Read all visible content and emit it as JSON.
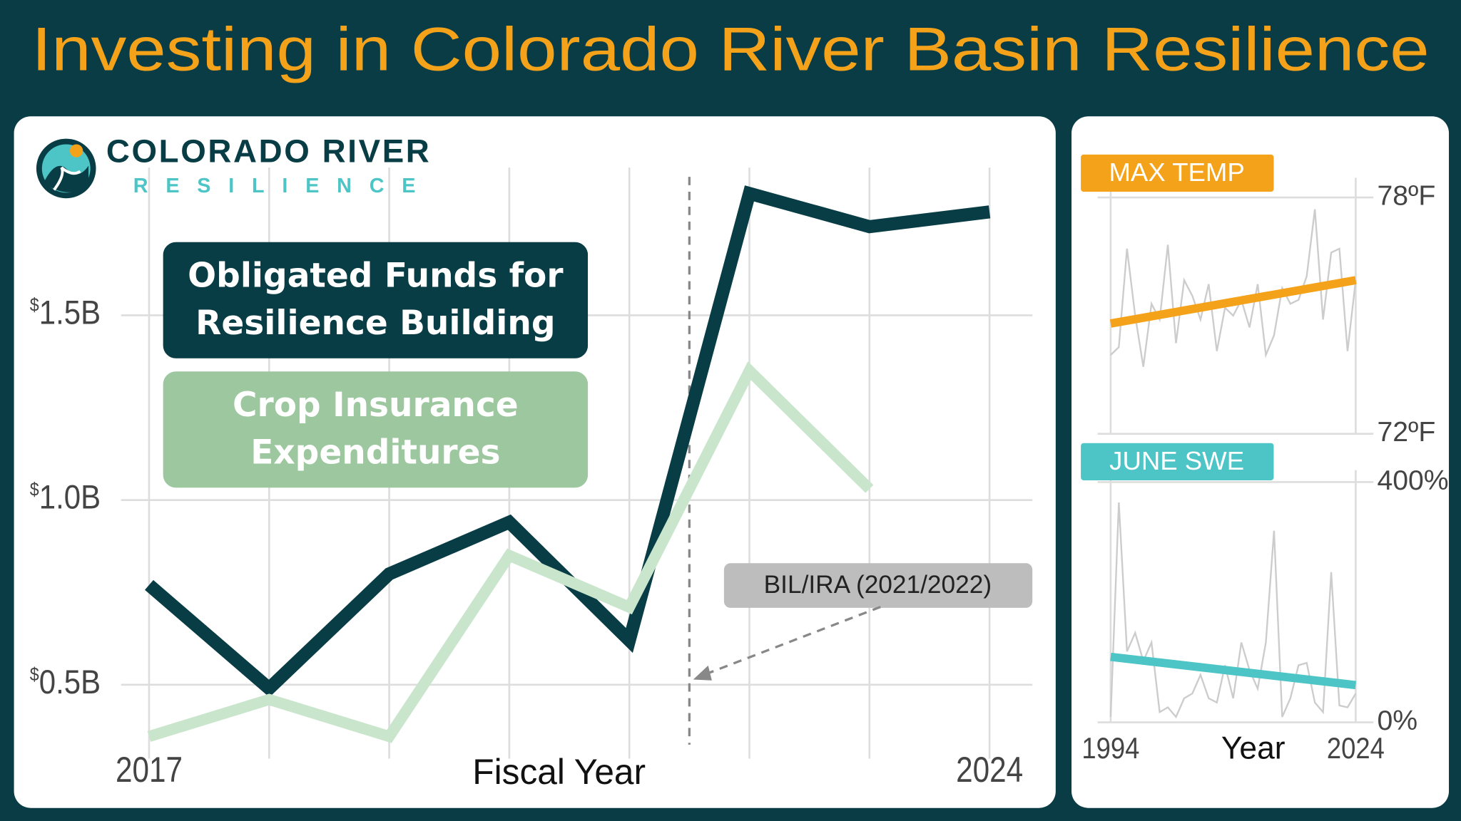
{
  "title": "Investing in Colorado River Basin Resilience",
  "logo": {
    "name": "COLORADO RIVER",
    "tagline": "RESILIENCE"
  },
  "chart_data": [
    {
      "type": "line",
      "x_label": "Fiscal Year",
      "x": [
        2017,
        2018,
        2019,
        2020,
        2021,
        2022,
        2023,
        2024
      ],
      "xlim": [
        2017,
        2024
      ],
      "xticks": [
        2017,
        2024
      ],
      "ylim": [
        0.3,
        1.9
      ],
      "yticks": [
        {
          "value": 0.5,
          "label": "$0.5B"
        },
        {
          "value": 1.0,
          "label": "$1.0B"
        },
        {
          "value": 1.5,
          "label": "$1.5B"
        }
      ],
      "grid": true,
      "series": [
        {
          "name": "Obligated Funds for Resilience Building",
          "color": "#093d45",
          "legend_color": "#093d45",
          "values": [
            0.77,
            0.49,
            0.8,
            0.94,
            0.62,
            1.83,
            1.74,
            1.78
          ]
        },
        {
          "name": "Crop Insurance Expenditures",
          "color": "#c9e5cc",
          "legend_color": "#9dc79f",
          "values": [
            0.36,
            0.46,
            0.36,
            0.85,
            0.71,
            1.35,
            1.03,
            null
          ]
        }
      ],
      "annotation": "BIL/IRA (2021/2022)"
    },
    {
      "type": "line",
      "title": "MAX TEMP",
      "color": "#f5a21b",
      "x": [
        1994,
        1995,
        1996,
        1997,
        1998,
        1999,
        2000,
        2001,
        2002,
        2003,
        2004,
        2005,
        2006,
        2007,
        2008,
        2009,
        2010,
        2011,
        2012,
        2013,
        2014,
        2015,
        2016,
        2017,
        2018,
        2019,
        2020,
        2021,
        2022,
        2023,
        2024
      ],
      "xlim": [
        1994,
        2024
      ],
      "ylim": [
        72,
        78.5
      ],
      "yticks": [
        {
          "value": 72,
          "label": "72ºF"
        },
        {
          "value": 78,
          "label": "78ºF"
        }
      ],
      "series": [
        {
          "name": "MAX TEMP",
          "color": "#cccccc",
          "values": [
            74.0,
            74.2,
            76.7,
            75.0,
            73.7,
            75.3,
            74.9,
            76.8,
            74.3,
            75.9,
            75.5,
            74.9,
            75.8,
            74.1,
            75.2,
            75.0,
            75.4,
            74.7,
            75.8,
            74.0,
            74.5,
            75.7,
            75.3,
            75.4,
            76.0,
            77.7,
            74.9,
            76.6,
            76.7,
            74.1,
            75.9
          ]
        }
      ],
      "trend": {
        "x": [
          1994,
          2024
        ],
        "values": [
          74.8,
          75.9
        ]
      }
    },
    {
      "type": "line",
      "title": "JUNE SWE",
      "color": "#4dc5c7",
      "x_label": "Year",
      "x": [
        1994,
        1995,
        1996,
        1997,
        1998,
        1999,
        2000,
        2001,
        2002,
        2003,
        2004,
        2005,
        2006,
        2007,
        2008,
        2009,
        2010,
        2011,
        2012,
        2013,
        2014,
        2015,
        2016,
        2017,
        2018,
        2019,
        2020,
        2021,
        2022,
        2023,
        2024
      ],
      "xlim": [
        1994,
        2024
      ],
      "xticks": [
        1994,
        2024
      ],
      "ylim": [
        0,
        420
      ],
      "yticks": [
        {
          "value": 0,
          "label": "0%"
        },
        {
          "value": 400,
          "label": "400%"
        }
      ],
      "series": [
        {
          "name": "JUNE SWE",
          "color": "#cccccc",
          "values": [
            9,
            366,
            118,
            149,
            102,
            133,
            17,
            25,
            9,
            40,
            48,
            79,
            40,
            33,
            95,
            40,
            133,
            87,
            56,
            133,
            319,
            9,
            40,
            95,
            99,
            33,
            17,
            250,
            28,
            25,
            48
          ]
        }
      ],
      "trend": {
        "x": [
          1994,
          2024
        ],
        "values": [
          109,
          62
        ]
      }
    }
  ]
}
